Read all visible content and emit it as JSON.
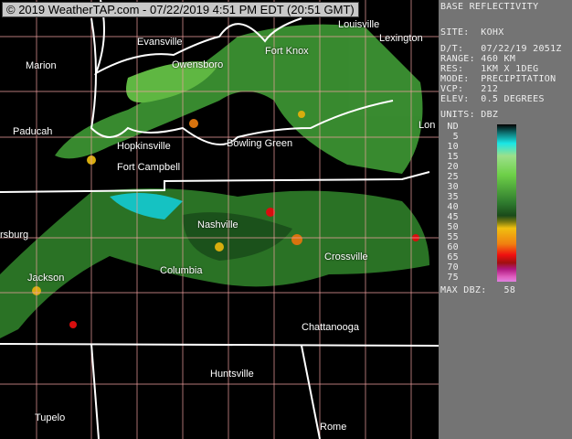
{
  "header": {
    "title": "© 2019 WeatherTAP.com - 07/22/2019  4:51 PM EDT (20:51 GMT)"
  },
  "map": {
    "cities": [
      "Louisville",
      "Evansville",
      "Fort Knox",
      "Lexington",
      "Marion",
      "Owensboro",
      "Paducah",
      "Hopkinsville",
      "Bowling Green",
      "Fort Campbell",
      "Lon",
      "Nashville",
      "rsburg",
      "Crossville",
      "Jackson",
      "Columbia",
      "Chattanooga",
      "Huntsville",
      "Tupelo",
      "Rome"
    ]
  },
  "panel": {
    "product": "BASE REFLECTIVITY",
    "site": "SITE:  KOHX",
    "datetime": "D/T:   07/22/19 2051Z",
    "range": "RANGE: 460 KM",
    "res": "RES:   1KM X 1DEG",
    "mode": "MODE:  PRECIPITATION",
    "vcp": "VCP:   212",
    "elev": "ELEV:  0.5 DEGREES",
    "units": "UNITS: DBZ",
    "legend": [
      "ND",
      "5",
      "10",
      "15",
      "20",
      "25",
      "30",
      "35",
      "40",
      "45",
      "50",
      "55",
      "60",
      "65",
      "70",
      "75"
    ],
    "max": "MAX DBZ:   58"
  }
}
